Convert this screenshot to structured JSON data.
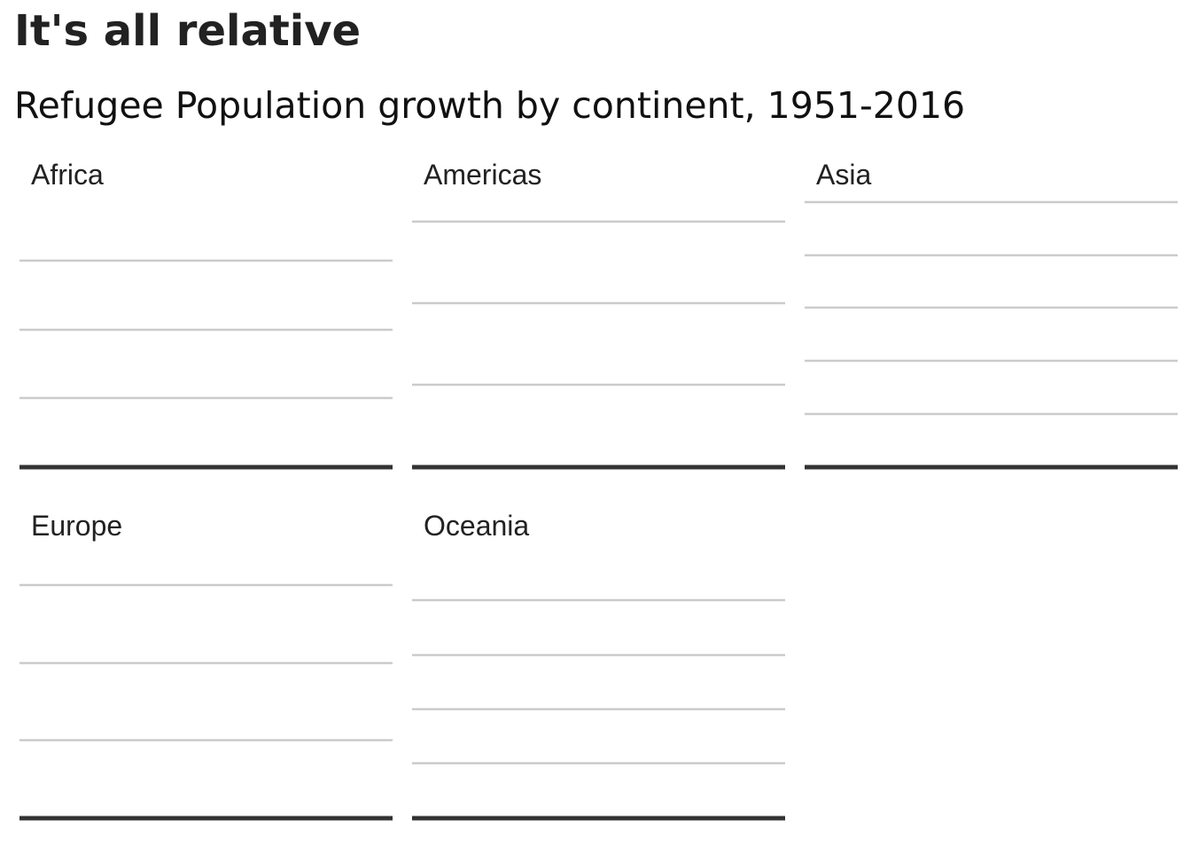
{
  "header": {
    "title": "It's all relative",
    "subtitle": "Refugee Population growth by continent, 1951-2016"
  },
  "colors": {
    "gridline": "#cbcbcb",
    "baseline": "#333333",
    "text": "#222222"
  },
  "chart_data": [
    {
      "type": "line",
      "title": "Africa",
      "xlabel": "",
      "ylabel": "",
      "xlim": [
        1951,
        2016
      ],
      "grid": true,
      "series": []
    },
    {
      "type": "line",
      "title": "Americas",
      "xlabel": "",
      "ylabel": "",
      "xlim": [
        1951,
        2016
      ],
      "grid": true,
      "series": []
    },
    {
      "type": "line",
      "title": "Asia",
      "xlabel": "",
      "ylabel": "",
      "xlim": [
        1951,
        2016
      ],
      "grid": true,
      "series": []
    },
    {
      "type": "line",
      "title": "Europe",
      "xlabel": "",
      "ylabel": "",
      "xlim": [
        1951,
        2016
      ],
      "grid": true,
      "series": []
    },
    {
      "type": "line",
      "title": "Oceania",
      "xlabel": "",
      "ylabel": "",
      "xlim": [
        1951,
        2016
      ],
      "grid": true,
      "series": []
    }
  ]
}
